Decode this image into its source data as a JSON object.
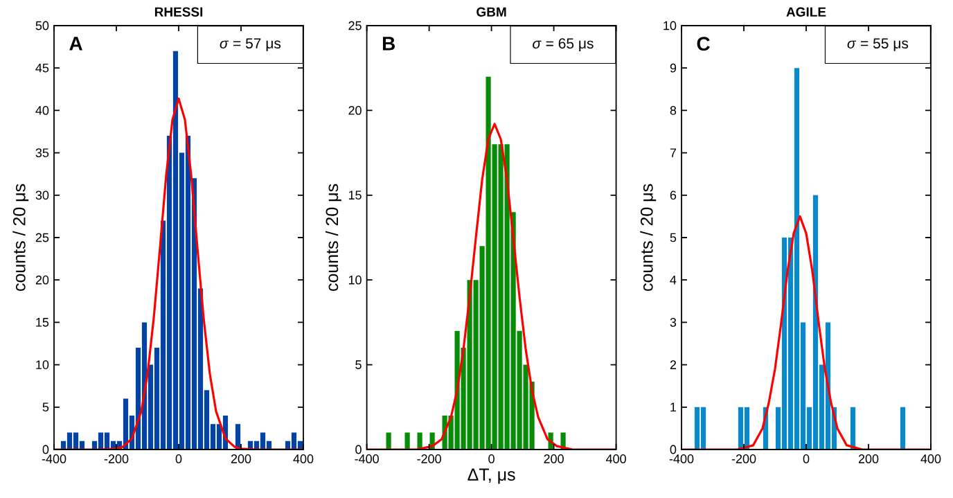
{
  "chart_data": [
    {
      "type": "histogram",
      "title": "RHESSI",
      "ylabel": "counts / 20 μs",
      "annotations": [
        "A",
        "*σ* = 57 μs"
      ],
      "bins": [
        -380,
        -360,
        -340,
        -320,
        -300,
        -280,
        -260,
        -240,
        -220,
        -200,
        -180,
        -160,
        -140,
        -120,
        -100,
        -80,
        -60,
        -40,
        -20,
        0,
        20,
        40,
        60,
        80,
        100,
        120,
        140,
        160,
        180,
        200,
        220,
        240,
        260,
        280,
        300,
        320,
        340,
        360,
        380,
        400
      ],
      "series": [
        {
          "color": "#0343a5",
          "values": [
            1,
            2,
            2,
            1,
            0,
            1,
            2,
            2,
            1,
            1,
            6,
            4,
            12,
            15,
            10,
            12,
            27,
            37,
            47,
            35,
            37,
            32,
            19,
            7,
            3,
            3,
            4,
            0,
            3,
            0,
            1,
            1,
            2,
            1,
            0,
            0,
            1,
            2,
            1
          ]
        },
        {
          "type": "line",
          "color": "#ff0000",
          "x": [
            -400,
            -250,
            -200,
            -180,
            -150,
            -120,
            -100,
            -80,
            -60,
            -40,
            -20,
            0,
            20,
            40,
            60,
            80,
            100,
            120,
            150,
            180,
            200,
            250,
            400
          ],
          "values": [
            0,
            0,
            0.1,
            0.3,
            1.3,
            4.5,
            8.9,
            15.5,
            23.8,
            32.4,
            38.9,
            41.4,
            38.9,
            32.4,
            23.8,
            15.5,
            8.9,
            4.5,
            1.3,
            0.3,
            0.1,
            0,
            0
          ]
        }
      ],
      "xlim": [
        -400,
        400
      ],
      "xticks": [
        -400,
        -200,
        0,
        200,
        400
      ],
      "ylim": [
        0,
        50
      ],
      "yticks": [
        0,
        5,
        10,
        15,
        20,
        25,
        30,
        35,
        40,
        45,
        50
      ]
    },
    {
      "type": "histogram",
      "title": "GBM",
      "xlabel": "ΔT, μs",
      "ylabel": "counts / 20 μs",
      "annotations": [
        "B",
        "*σ* = 65 μs"
      ],
      "bins": [
        -380,
        -360,
        -340,
        -320,
        -300,
        -280,
        -260,
        -240,
        -220,
        -200,
        -180,
        -160,
        -140,
        -120,
        -100,
        -80,
        -60,
        -40,
        -20,
        0,
        20,
        40,
        60,
        80,
        100,
        120,
        140,
        160,
        180,
        200,
        220,
        240,
        260,
        280,
        300,
        320,
        340,
        360,
        380,
        400
      ],
      "series": [
        {
          "color": "#078c07",
          "values": [
            0,
            0,
            1,
            0,
            0,
            1,
            0,
            1,
            0,
            1,
            0,
            2,
            2,
            7,
            6,
            10,
            10,
            12,
            22,
            18,
            18,
            18,
            14,
            7,
            5,
            4,
            0,
            0,
            1,
            0,
            1,
            0,
            0,
            0,
            0,
            0,
            0,
            0,
            0
          ]
        },
        {
          "type": "line",
          "color": "#ff0000",
          "x": [
            -400,
            -240,
            -190,
            -160,
            -130,
            -110,
            -90,
            -70,
            -50,
            -30,
            -10,
            10,
            30,
            50,
            70,
            90,
            110,
            130,
            150,
            180,
            210,
            260,
            400
          ],
          "values": [
            0,
            0,
            0.2,
            0.6,
            1.9,
            3.5,
            5.9,
            9.0,
            12.5,
            15.9,
            18.3,
            19.2,
            18.3,
            15.9,
            12.5,
            9.0,
            5.9,
            3.5,
            1.9,
            0.6,
            0.2,
            0,
            0
          ]
        }
      ],
      "xlim": [
        -400,
        400
      ],
      "xticks": [
        -400,
        -200,
        0,
        200,
        400
      ],
      "ylim": [
        0,
        25
      ],
      "yticks": [
        0,
        5,
        10,
        15,
        20,
        25
      ]
    },
    {
      "type": "histogram",
      "title": "AGILE",
      "ylabel": "counts / 20 μs",
      "annotations": [
        "C",
        "*σ* = 55 μs"
      ],
      "bins": [
        -380,
        -360,
        -340,
        -320,
        -300,
        -280,
        -260,
        -240,
        -220,
        -200,
        -180,
        -160,
        -140,
        -120,
        -100,
        -80,
        -60,
        -40,
        -20,
        0,
        20,
        40,
        60,
        80,
        100,
        120,
        140,
        160,
        180,
        200,
        220,
        240,
        260,
        280,
        300,
        320,
        340,
        360,
        380,
        400
      ],
      "series": [
        {
          "color": "#0a88cc",
          "values": [
            0,
            1,
            1,
            0,
            0,
            0,
            0,
            0,
            1,
            1,
            0,
            0,
            1,
            0,
            1,
            5,
            5,
            9,
            3,
            1,
            6,
            2,
            3,
            1,
            0,
            0,
            1,
            0,
            0,
            0,
            0,
            0,
            0,
            0,
            1,
            0,
            0,
            0,
            0
          ]
        },
        {
          "type": "line",
          "color": "#ff0000",
          "x": [
            -400,
            -220,
            -170,
            -140,
            -120,
            -100,
            -80,
            -60,
            -40,
            -20,
            0,
            20,
            40,
            60,
            80,
            100,
            130,
            180,
            400
          ],
          "values": [
            0,
            0,
            0.1,
            0.5,
            1.1,
            1.9,
            3.0,
            4.2,
            5.1,
            5.5,
            5.1,
            4.2,
            3.0,
            1.9,
            1.1,
            0.5,
            0.1,
            0,
            0
          ]
        }
      ],
      "xlim": [
        -400,
        400
      ],
      "xticks": [
        -400,
        -200,
        0,
        200,
        400
      ],
      "ylim": [
        0,
        10
      ],
      "yticks": [
        0,
        1,
        2,
        3,
        4,
        5,
        6,
        7,
        8,
        9,
        10
      ]
    }
  ]
}
